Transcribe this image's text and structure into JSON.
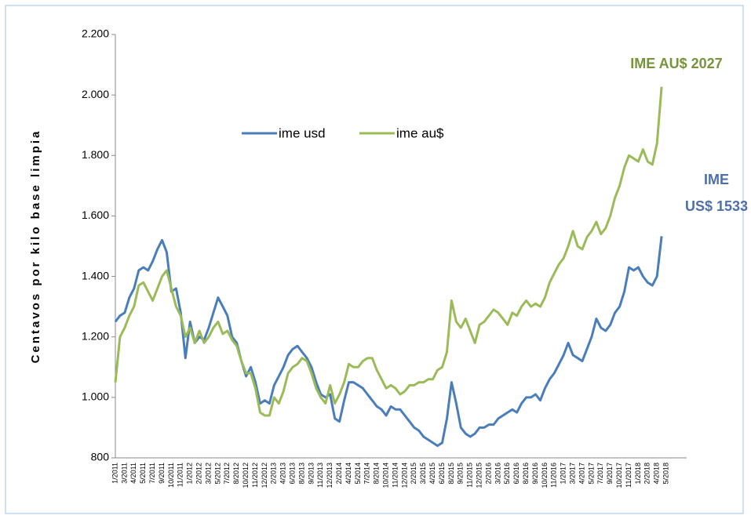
{
  "chart_data": {
    "type": "line",
    "y_label": "Centavos por kilo base limpia",
    "annotations": [
      {
        "lines": [
          "IME AU$ 2027"
        ],
        "color": "#77933c"
      },
      {
        "lines": [
          "IME",
          "US$ 1533"
        ],
        "color": "#4f6fa8"
      }
    ],
    "categories": [
      "1/2011",
      null,
      "3/2011",
      null,
      "4/2011",
      null,
      "5/2011",
      null,
      "7/2011",
      null,
      "9/2011",
      null,
      "10/2011",
      null,
      "11/2011",
      null,
      "1/2012",
      null,
      "2/2012",
      null,
      "3/2012",
      null,
      "5/2012",
      null,
      "7/2012",
      null,
      "8/2012",
      null,
      "10/2012",
      null,
      "11/2012",
      null,
      "12/2012",
      null,
      "2/2013",
      null,
      "4/2013",
      null,
      "6/2013",
      null,
      "8/2013",
      null,
      "9/2013",
      null,
      "11/2013",
      null,
      "12/2013",
      null,
      "2/2014",
      null,
      "4/2014",
      null,
      "5/2014",
      null,
      "7/2014",
      null,
      "8/2014",
      null,
      "10/2014",
      null,
      "11/2014",
      null,
      "12/2014",
      null,
      "2/2015",
      null,
      "3/2015",
      null,
      "4/2015",
      null,
      "6/2015",
      null,
      "8/2015",
      null,
      "9/2015",
      null,
      "11/2015",
      null,
      "12/2015",
      null,
      "2/2016",
      null,
      "3/2016",
      null,
      "5/2016",
      null,
      "6/2016",
      null,
      "8/2016",
      null,
      "9/2016",
      null,
      "10/2016",
      null,
      "11/2016",
      null,
      "1/2017",
      null,
      "3/2017",
      null,
      "4/2017",
      null,
      "5/2017",
      null,
      "7/2017",
      null,
      "9/2017",
      null,
      "10/2017",
      null,
      "11/2017",
      null,
      "1/2018",
      null,
      "2/2018",
      null,
      "4/2018",
      null,
      "5/2018",
      null
    ],
    "series": [
      {
        "name": "ime usd",
        "color": "#4a7ebb",
        "values": [
          1250,
          1270,
          1280,
          1330,
          1360,
          1420,
          1430,
          1420,
          1450,
          1490,
          1520,
          1480,
          1350,
          1360,
          1280,
          1130,
          1250,
          1180,
          1200,
          1190,
          1230,
          1280,
          1330,
          1300,
          1270,
          1200,
          1180,
          1120,
          1070,
          1100,
          1050,
          980,
          990,
          980,
          1040,
          1070,
          1100,
          1140,
          1160,
          1170,
          1150,
          1130,
          1100,
          1050,
          1010,
          1000,
          1010,
          930,
          920,
          990,
          1050,
          1050,
          1040,
          1030,
          1010,
          990,
          970,
          960,
          940,
          970,
          960,
          960,
          940,
          920,
          900,
          890,
          870,
          860,
          850,
          840,
          850,
          930,
          1050,
          980,
          900,
          880,
          870,
          880,
          900,
          900,
          910,
          910,
          930,
          940,
          950,
          960,
          950,
          980,
          1000,
          1000,
          1010,
          990,
          1030,
          1060,
          1080,
          1110,
          1140,
          1180,
          1140,
          1130,
          1120,
          1160,
          1200,
          1260,
          1230,
          1220,
          1240,
          1280,
          1300,
          1350,
          1430,
          1420,
          1430,
          1400,
          1380,
          1370,
          1400,
          1533,
          null,
          null
        ]
      },
      {
        "name": "ime au$",
        "color": "#9bbb59",
        "values": [
          1050,
          1200,
          1230,
          1270,
          1300,
          1370,
          1380,
          1350,
          1320,
          1360,
          1400,
          1420,
          1360,
          1300,
          1270,
          1200,
          1230,
          1180,
          1220,
          1180,
          1200,
          1230,
          1250,
          1210,
          1220,
          1190,
          1170,
          1120,
          1080,
          1080,
          1030,
          950,
          940,
          940,
          1000,
          980,
          1020,
          1080,
          1100,
          1110,
          1130,
          1120,
          1080,
          1030,
          1000,
          980,
          1040,
          980,
          1010,
          1050,
          1110,
          1100,
          1100,
          1120,
          1130,
          1130,
          1090,
          1060,
          1030,
          1040,
          1030,
          1010,
          1020,
          1040,
          1040,
          1050,
          1050,
          1060,
          1060,
          1090,
          1100,
          1150,
          1320,
          1250,
          1230,
          1260,
          1220,
          1180,
          1240,
          1250,
          1270,
          1290,
          1280,
          1260,
          1240,
          1280,
          1270,
          1300,
          1320,
          1300,
          1310,
          1300,
          1330,
          1380,
          1410,
          1440,
          1460,
          1500,
          1550,
          1500,
          1490,
          1530,
          1550,
          1580,
          1540,
          1560,
          1600,
          1660,
          1700,
          1760,
          1800,
          1790,
          1780,
          1820,
          1780,
          1770,
          1840,
          2027,
          null,
          null
        ]
      }
    ],
    "ylim": [
      800,
      2200
    ],
    "yticks": [
      800,
      {
        "value": 1000,
        "label": "1.000"
      },
      {
        "value": 1200,
        "label": "1.200"
      },
      {
        "value": 1400,
        "label": "1.400"
      },
      {
        "value": 1600,
        "label": "1.600"
      },
      {
        "value": 1800,
        "label": "1.800"
      },
      {
        "value": 2000,
        "label": "2.000"
      },
      {
        "value": 2200,
        "label": "2.200"
      }
    ],
    "legend": "top-center"
  }
}
